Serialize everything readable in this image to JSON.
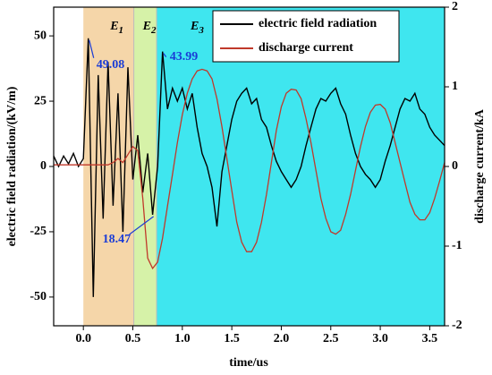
{
  "chart_data": {
    "type": "line",
    "xlabel": "time/us",
    "ylabel": "electric field radiation/(kV/m)",
    "y2label": "discharge current/kA",
    "xlim": [
      -0.3,
      3.65
    ],
    "ylim": [
      -61,
      61
    ],
    "y2lim": [
      -2,
      2
    ],
    "xticks": [
      {
        "value": 0,
        "label": "0.0"
      },
      {
        "value": 0.5,
        "label": "0.5"
      },
      {
        "value": 1,
        "label": "1.0"
      },
      {
        "value": 1.5,
        "label": "1.5"
      },
      {
        "value": 2,
        "label": "2.0"
      },
      {
        "value": 2.5,
        "label": "2.5"
      },
      {
        "value": 3,
        "label": "3.0"
      },
      {
        "value": 3.5,
        "label": "3.5"
      }
    ],
    "yticks": [
      -50,
      -25,
      0,
      25,
      50
    ],
    "y2ticks": [
      -2,
      -1,
      0,
      1,
      2
    ],
    "legend": "upper center",
    "regions": [
      {
        "label": "E1",
        "start": 0,
        "end": 0.51,
        "color": "#f5d6a9"
      },
      {
        "label": "E2",
        "start": 0.51,
        "end": 0.74,
        "color": "#d6f2a8"
      },
      {
        "label": "E3",
        "start": 0.74,
        "end": 3.65,
        "color": "#3fe6ef"
      }
    ],
    "annotations": [
      {
        "text": "49.08",
        "x": 0.05,
        "y": 49.08
      },
      {
        "text": "43.99",
        "x": 0.8,
        "y": 43.99
      },
      {
        "text": "18.47",
        "x": 0.7,
        "y": -18.47
      }
    ],
    "x": [
      -0.3,
      -0.25,
      -0.2,
      -0.15,
      -0.1,
      -0.05,
      0,
      0.05,
      0.1,
      0.15,
      0.2,
      0.25,
      0.3,
      0.35,
      0.4,
      0.45,
      0.5,
      0.55,
      0.6,
      0.65,
      0.7,
      0.75,
      0.8,
      0.85,
      0.9,
      0.95,
      1,
      1.05,
      1.1,
      1.15,
      1.2,
      1.25,
      1.3,
      1.35,
      1.4,
      1.45,
      1.5,
      1.55,
      1.6,
      1.65,
      1.7,
      1.75,
      1.8,
      1.85,
      1.9,
      1.95,
      2,
      2.05,
      2.1,
      2.15,
      2.2,
      2.25,
      2.3,
      2.35,
      2.4,
      2.45,
      2.5,
      2.55,
      2.6,
      2.65,
      2.7,
      2.75,
      2.8,
      2.85,
      2.9,
      2.95,
      3,
      3.05,
      3.1,
      3.15,
      3.2,
      3.25,
      3.3,
      3.35,
      3.4,
      3.45,
      3.5,
      3.55,
      3.6,
      3.65
    ],
    "series": [
      {
        "name": "electric field radiation",
        "color": "#000000",
        "values": [
          4,
          0,
          4,
          1,
          5,
          0,
          3,
          49.08,
          -50,
          35,
          -20,
          40,
          -15,
          28,
          -25,
          38,
          -5,
          12,
          -10,
          5,
          -18.47,
          0,
          43.99,
          22,
          30,
          25,
          30,
          22,
          28,
          15,
          5,
          0,
          -8,
          -23,
          -2,
          8,
          18,
          25,
          28,
          30,
          24,
          26,
          18,
          15,
          8,
          2,
          -2,
          -5,
          -8,
          -5,
          0,
          8,
          15,
          22,
          26,
          25,
          28,
          30,
          24,
          20,
          12,
          5,
          0,
          -3,
          -5,
          -8,
          -5,
          2,
          8,
          15,
          22,
          26,
          25,
          28,
          22,
          20,
          15,
          12,
          10,
          8
        ]
      },
      {
        "name": "discharge current",
        "color": "#c0392b",
        "axis": "y2",
        "values": [
          0.02,
          0.02,
          0.02,
          0.02,
          0.02,
          0.02,
          0.02,
          0.02,
          0.02,
          0.02,
          0.02,
          0.02,
          0.05,
          0.1,
          0.05,
          0.15,
          0.25,
          0.2,
          -0.4,
          -1.15,
          -1.28,
          -1.2,
          -0.9,
          -0.5,
          -0.1,
          0.3,
          0.65,
          0.92,
          1.1,
          1.2,
          1.22,
          1.2,
          1.1,
          0.85,
          0.5,
          0.1,
          -0.3,
          -0.7,
          -0.95,
          -1.07,
          -1.07,
          -0.95,
          -0.7,
          -0.35,
          0.05,
          0.45,
          0.75,
          0.92,
          0.97,
          0.96,
          0.85,
          0.6,
          0.3,
          -0.05,
          -0.4,
          -0.65,
          -0.82,
          -0.85,
          -0.8,
          -0.6,
          -0.35,
          -0.05,
          0.25,
          0.5,
          0.68,
          0.77,
          0.78,
          0.72,
          0.55,
          0.3,
          0.05,
          -0.2,
          -0.45,
          -0.6,
          -0.67,
          -0.67,
          -0.58,
          -0.4,
          -0.18,
          0.05
        ]
      }
    ]
  }
}
